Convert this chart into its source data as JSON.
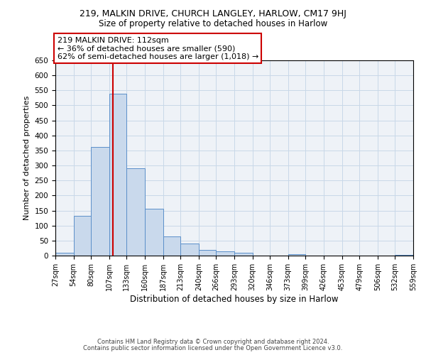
{
  "title1": "219, MALKIN DRIVE, CHURCH LANGLEY, HARLOW, CM17 9HJ",
  "title2": "Size of property relative to detached houses in Harlow",
  "xlabel": "Distribution of detached houses by size in Harlow",
  "ylabel": "Number of detached properties",
  "bin_edges": [
    27,
    54,
    80,
    107,
    133,
    160,
    187,
    213,
    240,
    266,
    293,
    320,
    346,
    373,
    399,
    426,
    453,
    479,
    506,
    532,
    559
  ],
  "bar_heights": [
    10,
    133,
    362,
    540,
    291,
    157,
    65,
    41,
    20,
    14,
    10,
    0,
    0,
    5,
    0,
    0,
    0,
    0,
    0,
    3
  ],
  "bar_color": "#c9d9ec",
  "bar_edge_color": "#5b8fc9",
  "grid_color": "#c8d8e8",
  "bg_color": "#eef2f7",
  "vline_x": 112,
  "vline_color": "#cc0000",
  "annotation_title": "219 MALKIN DRIVE: 112sqm",
  "annotation_line1": "← 36% of detached houses are smaller (590)",
  "annotation_line2": "62% of semi-detached houses are larger (1,018) →",
  "annotation_box_color": "#cc0000",
  "ylim": [
    0,
    650
  ],
  "yticks": [
    0,
    50,
    100,
    150,
    200,
    250,
    300,
    350,
    400,
    450,
    500,
    550,
    600,
    650
  ],
  "footer1": "Contains HM Land Registry data © Crown copyright and database right 2024.",
  "footer2": "Contains public sector information licensed under the Open Government Licence v3.0."
}
